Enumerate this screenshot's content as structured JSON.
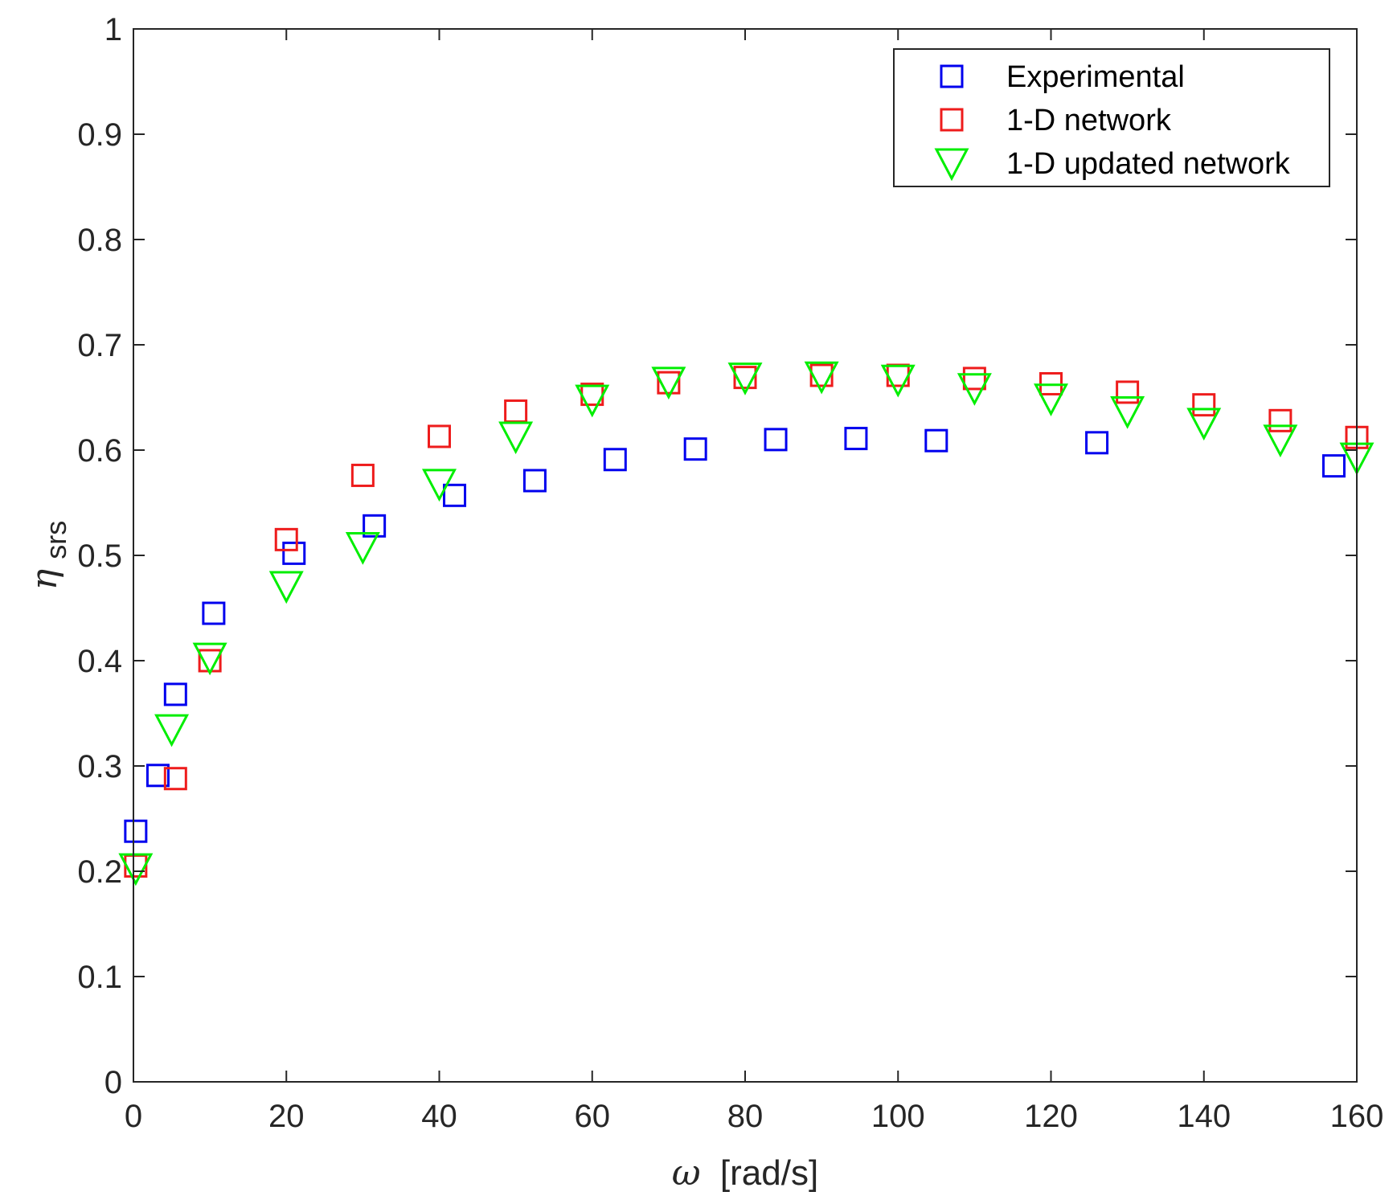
{
  "chart_data": {
    "type": "scatter",
    "title": "",
    "xlabel": "[rad/s]",
    "xlabel_symbol": "ω",
    "ylabel_symbol": "η",
    "ylabel_subscript": "srs",
    "xlim": [
      0,
      160
    ],
    "ylim": [
      0,
      1
    ],
    "xticks": [
      0,
      20,
      40,
      60,
      80,
      100,
      120,
      140,
      160
    ],
    "xtick_labels": [
      "0",
      "20",
      "40",
      "60",
      "80",
      "100",
      "120",
      "140",
      "160"
    ],
    "yticks": [
      0,
      0.1,
      0.2,
      0.3,
      0.4,
      0.5,
      0.6,
      0.7,
      0.8,
      0.9,
      1
    ],
    "ytick_labels": [
      "0",
      "0.1",
      "0.2",
      "0.3",
      "0.4",
      "0.5",
      "0.6",
      "0.7",
      "0.8",
      "0.9",
      "1"
    ],
    "grid": false,
    "legend_position": "top-right",
    "series": [
      {
        "name": "Experimental",
        "marker": "square",
        "color": "#0000ee",
        "x": [
          0.3,
          3.2,
          5.5,
          10.5,
          21,
          31.5,
          42,
          52.5,
          63,
          73.5,
          84,
          94.5,
          105,
          126,
          157
        ],
        "y": [
          0.238,
          0.291,
          0.368,
          0.445,
          0.502,
          0.528,
          0.557,
          0.571,
          0.591,
          0.601,
          0.61,
          0.611,
          0.609,
          0.607,
          0.585
        ]
      },
      {
        "name": "1-D network",
        "marker": "square",
        "color": "#ee1c1c",
        "x": [
          0.3,
          5.5,
          10,
          20,
          30,
          40,
          50,
          60,
          70,
          80,
          90,
          100,
          110,
          120,
          130,
          140,
          150,
          160
        ],
        "y": [
          0.205,
          0.288,
          0.4,
          0.515,
          0.576,
          0.613,
          0.637,
          0.653,
          0.664,
          0.669,
          0.671,
          0.671,
          0.668,
          0.663,
          0.655,
          0.643,
          0.628,
          0.612
        ]
      },
      {
        "name": "1-D updated network",
        "marker": "triangle-down",
        "color": "#00ee00",
        "x": [
          0.3,
          5,
          10,
          20,
          30,
          40,
          50,
          60,
          70,
          80,
          90,
          100,
          110,
          120,
          130,
          140,
          150,
          160
        ],
        "y": [
          0.203,
          0.335,
          0.403,
          0.471,
          0.508,
          0.568,
          0.613,
          0.648,
          0.665,
          0.669,
          0.67,
          0.667,
          0.659,
          0.649,
          0.637,
          0.626,
          0.61,
          0.593
        ]
      }
    ]
  }
}
